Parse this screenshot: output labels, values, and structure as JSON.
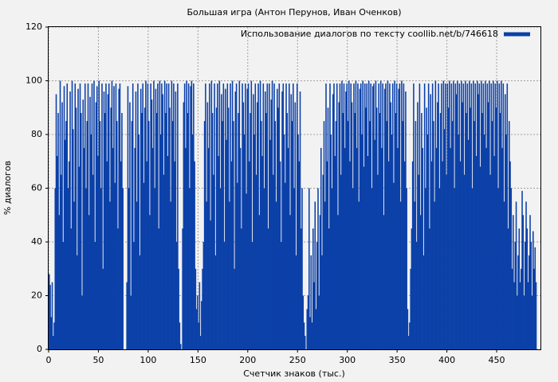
{
  "chart_data": {
    "type": "bar",
    "title": "Большая игра (Антон Перунов, Иван Оченков)",
    "x_label": "Счетчик знаков (тыс.)",
    "y_label": "% диалогов",
    "legend_position": "upper right",
    "grid": true,
    "xlim": [
      0,
      494
    ],
    "ylim": [
      0,
      120
    ],
    "xticks": [
      0,
      50,
      100,
      150,
      200,
      250,
      300,
      350,
      400,
      450
    ],
    "yticks": [
      0,
      20,
      40,
      60,
      80,
      100,
      120
    ],
    "x": [
      0,
      1,
      2,
      3,
      4,
      5,
      6,
      7,
      8,
      9,
      10,
      11,
      12,
      13,
      14,
      15,
      16,
      17,
      18,
      19,
      20,
      21,
      22,
      23,
      24,
      25,
      26,
      27,
      28,
      29,
      30,
      31,
      32,
      33,
      34,
      35,
      36,
      37,
      38,
      39,
      40,
      41,
      42,
      43,
      44,
      45,
      46,
      47,
      48,
      49,
      50,
      51,
      52,
      53,
      54,
      55,
      56,
      57,
      58,
      59,
      60,
      61,
      62,
      63,
      64,
      65,
      66,
      67,
      68,
      69,
      70,
      71,
      72,
      73,
      74,
      75,
      76,
      77,
      78,
      79,
      80,
      81,
      82,
      83,
      84,
      85,
      86,
      87,
      88,
      89,
      90,
      91,
      92,
      93,
      94,
      95,
      96,
      97,
      98,
      99,
      100,
      101,
      102,
      103,
      104,
      105,
      106,
      107,
      108,
      109,
      110,
      111,
      112,
      113,
      114,
      115,
      116,
      117,
      118,
      119,
      120,
      121,
      122,
      123,
      124,
      125,
      126,
      127,
      128,
      129,
      130,
      131,
      132,
      133,
      134,
      135,
      136,
      137,
      138,
      139,
      140,
      141,
      142,
      143,
      144,
      145,
      146,
      147,
      148,
      149,
      150,
      151,
      152,
      153,
      154,
      155,
      156,
      157,
      158,
      159,
      160,
      161,
      162,
      163,
      164,
      165,
      166,
      167,
      168,
      169,
      170,
      171,
      172,
      173,
      174,
      175,
      176,
      177,
      178,
      179,
      180,
      181,
      182,
      183,
      184,
      185,
      186,
      187,
      188,
      189,
      190,
      191,
      192,
      193,
      194,
      195,
      196,
      197,
      198,
      199,
      200,
      201,
      202,
      203,
      204,
      205,
      206,
      207,
      208,
      209,
      210,
      211,
      212,
      213,
      214,
      215,
      216,
      217,
      218,
      219,
      220,
      221,
      222,
      223,
      224,
      225,
      226,
      227,
      228,
      229,
      230,
      231,
      232,
      233,
      234,
      235,
      236,
      237,
      238,
      239,
      240,
      241,
      242,
      243,
      244,
      245,
      246,
      247,
      248,
      249,
      250,
      251,
      252,
      253,
      254,
      255,
      256,
      257,
      258,
      259,
      260,
      261,
      262,
      263,
      264,
      265,
      266,
      267,
      268,
      269,
      270,
      271,
      272,
      273,
      274,
      275,
      276,
      277,
      278,
      279,
      280,
      281,
      282,
      283,
      284,
      285,
      286,
      287,
      288,
      289,
      290,
      291,
      292,
      293,
      294,
      295,
      296,
      297,
      298,
      299,
      300,
      301,
      302,
      303,
      304,
      305,
      306,
      307,
      308,
      309,
      310,
      311,
      312,
      313,
      314,
      315,
      316,
      317,
      318,
      319,
      320,
      321,
      322,
      323,
      324,
      325,
      326,
      327,
      328,
      329,
      330,
      331,
      332,
      333,
      334,
      335,
      336,
      337,
      338,
      339,
      340,
      341,
      342,
      343,
      344,
      345,
      346,
      347,
      348,
      349,
      350,
      351,
      352,
      353,
      354,
      355,
      356,
      357,
      358,
      359,
      360,
      361,
      362,
      363,
      364,
      365,
      366,
      367,
      368,
      369,
      370,
      371,
      372,
      373,
      374,
      375,
      376,
      377,
      378,
      379,
      380,
      381,
      382,
      383,
      384,
      385,
      386,
      387,
      388,
      389,
      390,
      391,
      392,
      393,
      394,
      395,
      396,
      397,
      398,
      399,
      400,
      401,
      402,
      403,
      404,
      405,
      406,
      407,
      408,
      409,
      410,
      411,
      412,
      413,
      414,
      415,
      416,
      417,
      418,
      419,
      420,
      421,
      422,
      423,
      424,
      425,
      426,
      427,
      428,
      429,
      430,
      431,
      432,
      433,
      434,
      435,
      436,
      437,
      438,
      439,
      440,
      441,
      442,
      443,
      444,
      445,
      446,
      447,
      448,
      449,
      450,
      451,
      452,
      453,
      454,
      455,
      456,
      457,
      458,
      459,
      460,
      461,
      462,
      463,
      464,
      465,
      466,
      467,
      468,
      469,
      470,
      471,
      472,
      473,
      474,
      475,
      476,
      477,
      478,
      479,
      480,
      481,
      482,
      483,
      484,
      485,
      486,
      487,
      488,
      489
    ],
    "series": [
      {
        "name": "Использование диалогов по тексту coollib.net/b/746618",
        "color": "#0b40a8",
        "values": [
          28,
          24,
          12,
          25,
          5,
          10,
          60,
          95,
          72,
          88,
          50,
          100,
          65,
          92,
          40,
          98,
          78,
          85,
          99,
          60,
          70,
          96,
          45,
          100,
          82,
          55,
          99,
          90,
          35,
          97,
          68,
          99,
          88,
          20,
          93,
          75,
          99,
          60,
          85,
          99,
          50,
          94,
          80,
          99,
          65,
          100,
          40,
          92,
          98,
          72,
          100,
          85,
          60,
          99,
          30,
          96,
          88,
          99,
          70,
          95,
          99,
          55,
          90,
          100,
          75,
          98,
          62,
          99,
          85,
          45,
          97,
          99,
          70,
          88,
          60,
          0,
          0,
          0,
          25,
          98,
          60,
          92,
          20,
          85,
          99,
          40,
          75,
          96,
          55,
          99,
          80,
          35,
          97,
          88,
          99,
          62,
          90,
          100,
          70,
          99,
          85,
          50,
          99,
          93,
          75,
          100,
          60,
          97,
          88,
          99,
          45,
          100,
          80,
          99,
          95,
          65,
          100,
          88,
          99,
          72,
          99,
          90,
          55,
          100,
          85,
          99,
          70,
          96,
          40,
          99,
          30,
          10,
          2,
          0,
          45,
          92,
          99,
          75,
          100,
          88,
          99,
          60,
          98,
          100,
          80,
          99,
          70,
          30,
          15,
          20,
          10,
          25,
          5,
          18,
          30,
          40,
          85,
          99,
          55,
          92,
          75,
          99,
          48,
          100,
          88,
          65,
          99,
          35,
          90,
          99,
          72,
          100,
          60,
          95,
          85,
          99,
          40,
          97,
          78,
          99,
          90,
          55,
          99,
          70,
          100,
          85,
          30,
          96,
          99,
          62,
          88,
          100,
          75,
          45,
          99,
          92,
          80,
          99,
          58,
          97,
          99,
          70,
          88,
          100,
          40,
          95,
          80,
          99,
          65,
          92,
          99,
          50,
          100,
          85,
          72,
          99,
          60,
          96,
          88,
          99,
          45,
          99,
          78,
          93,
          100,
          65,
          99,
          85,
          55,
          97,
          90,
          99,
          70,
          40,
          96,
          99,
          80,
          62,
          99,
          88,
          75,
          99,
          50,
          95,
          85,
          99,
          60,
          92,
          35,
          99,
          80,
          70,
          96,
          45,
          60,
          20,
          10,
          5,
          0,
          15,
          20,
          60,
          12,
          35,
          10,
          45,
          25,
          55,
          15,
          40,
          60,
          20,
          50,
          75,
          35,
          65,
          85,
          55,
          99,
          70,
          90,
          45,
          99,
          80,
          60,
          95,
          99,
          72,
          85,
          99,
          50,
          92,
          99,
          65,
          100,
          88,
          99,
          75,
          96,
          99,
          85,
          100,
          70,
          99,
          92,
          60,
          99,
          88,
          100,
          75,
          99,
          55,
          97,
          99,
          80,
          100,
          68,
          99,
          90,
          99,
          72,
          100,
          85,
          99,
          60,
          98,
          99,
          78,
          100,
          90,
          65,
          99,
          88,
          100,
          75,
          99,
          50,
          97,
          99,
          85,
          100,
          70,
          99,
          92,
          80,
          99,
          62,
          100,
          88,
          99,
          75,
          97,
          99,
          55,
          100,
          85,
          99,
          70,
          96,
          60,
          15,
          5,
          10,
          30,
          45,
          70,
          99,
          55,
          85,
          40,
          92,
          65,
          99,
          50,
          88,
          75,
          35,
          99,
          60,
          90,
          80,
          99,
          45,
          95,
          70,
          99,
          85,
          55,
          100,
          75,
          92,
          99,
          60,
          88,
          99,
          70,
          100,
          82,
          99,
          65,
          99,
          90,
          100,
          75,
          99,
          85,
          100,
          60,
          99,
          95,
          100,
          80,
          99,
          70,
          100,
          92,
          99,
          65,
          100,
          88,
          99,
          78,
          100,
          90,
          99,
          60,
          100,
          85,
          99,
          72,
          100,
          95,
          99,
          68,
          100,
          88,
          99,
          80,
          100,
          75,
          99,
          92,
          100,
          65,
          99,
          85,
          100,
          72,
          99,
          90,
          100,
          60,
          99,
          88,
          100,
          75,
          99,
          55,
          95,
          80,
          99,
          45,
          85,
          70,
          60,
          30,
          50,
          25,
          40,
          55,
          20,
          35,
          45,
          25,
          30,
          59,
          50,
          20,
          40,
          55,
          45,
          25,
          35,
          50,
          40,
          20,
          44,
          30,
          38,
          25
        ]
      }
    ]
  }
}
